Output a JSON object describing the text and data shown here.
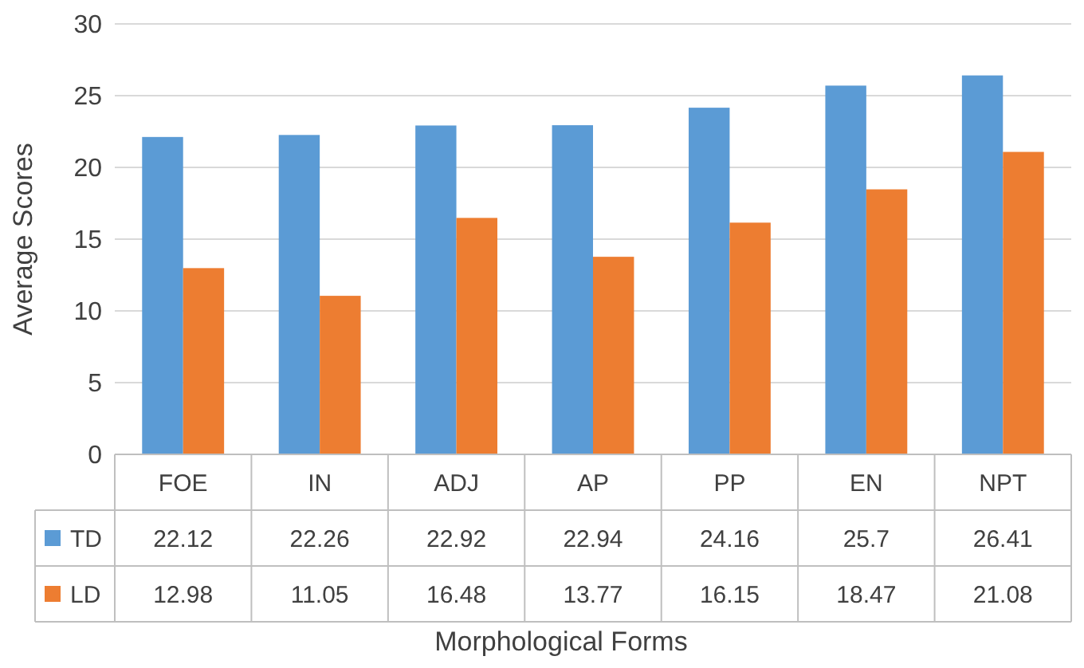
{
  "chart_data": {
    "type": "bar",
    "xlabel": "Morphological Forms",
    "ylabel": "Average Scores",
    "categories": [
      "FOE",
      "IN",
      "ADJ",
      "AP",
      "PP",
      "EN",
      "NPT"
    ],
    "series": [
      {
        "name": "TD",
        "color": "#5b9bd5",
        "values": [
          22.12,
          22.26,
          22.92,
          22.94,
          24.16,
          25.7,
          26.41
        ]
      },
      {
        "name": "LD",
        "color": "#ed7d31",
        "values": [
          12.98,
          11.05,
          16.48,
          13.77,
          16.15,
          18.47,
          21.08
        ]
      }
    ],
    "ylim": [
      0,
      30
    ],
    "yticks": [
      0,
      5,
      10,
      15,
      20,
      25,
      30
    ],
    "grid": "y",
    "legend": "bottom",
    "data_labels": true
  }
}
